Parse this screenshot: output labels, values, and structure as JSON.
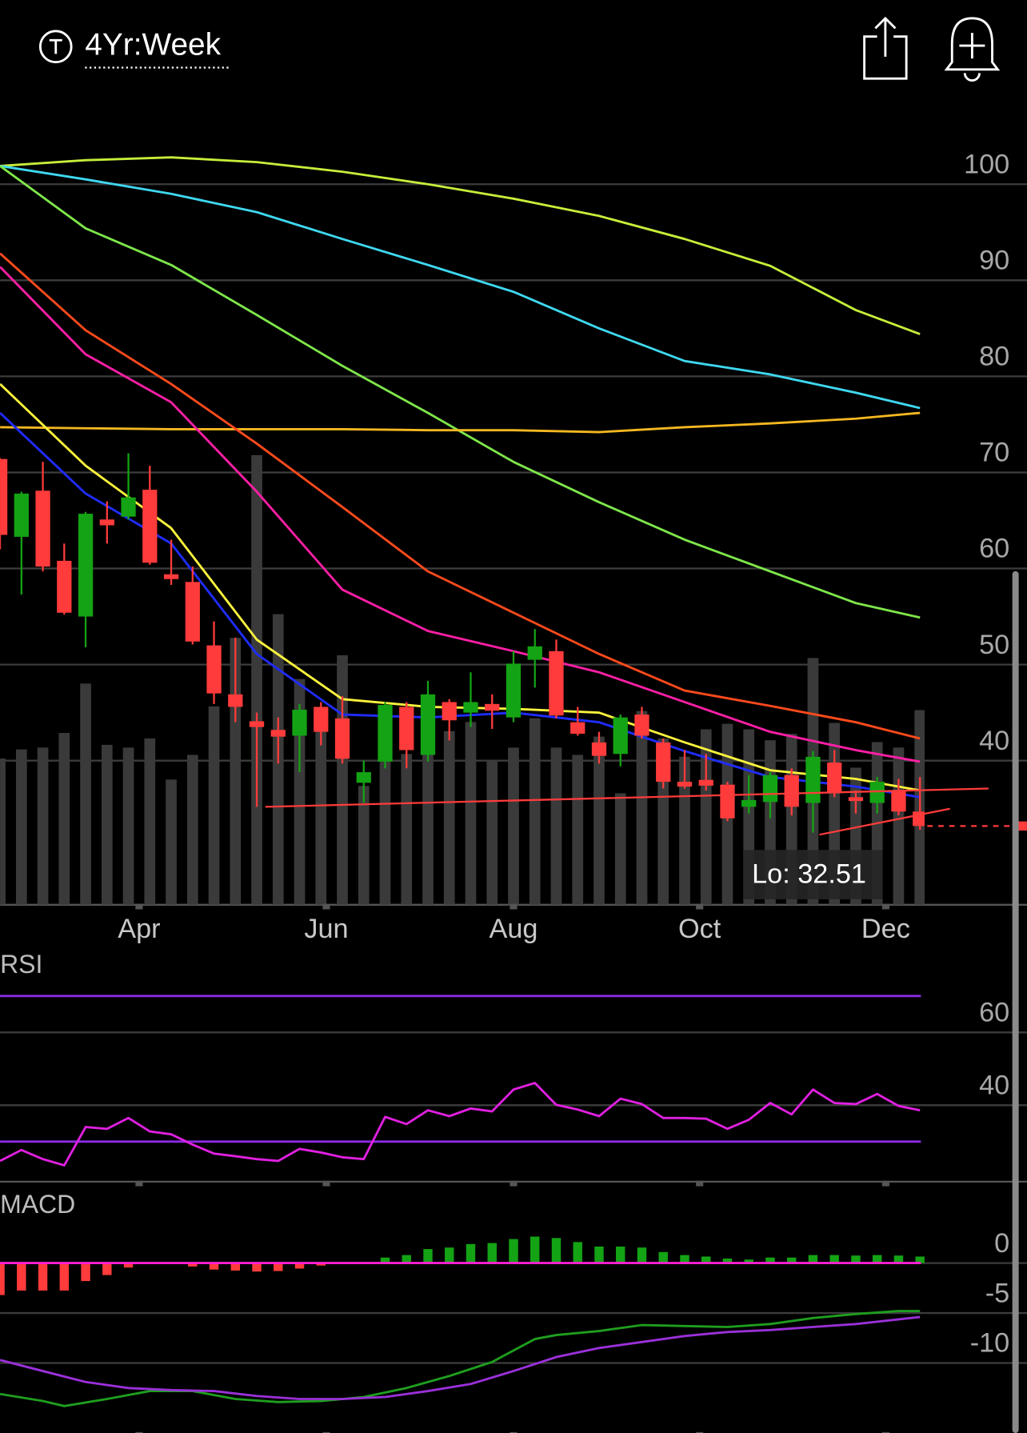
{
  "header": {
    "title": "4Yr:Week"
  },
  "chart_data": [
    {
      "type": "candlestick",
      "xlim": [
        0,
        48
      ],
      "xticks": [
        {
          "value": 6.5,
          "label": "Apr"
        },
        {
          "value": 15.25,
          "label": "Jun"
        },
        {
          "value": 24,
          "label": "Aug"
        },
        {
          "value": 32.7,
          "label": "Oct"
        },
        {
          "value": 41.4,
          "label": "Dec"
        }
      ],
      "ylim": [
        25,
        107
      ],
      "yticks": [
        40,
        50,
        60,
        70,
        80,
        90,
        100
      ],
      "grid": true,
      "up_color": "#14a314",
      "down_color": "#ff3b3b",
      "volume_color": "#3a3a3a",
      "open": [
        71.4,
        63.3,
        68.1,
        60.8,
        55,
        65.1,
        65.4,
        68.2,
        59.4,
        58.6,
        52,
        46.9,
        44.1,
        43.2,
        42.6,
        45.6,
        44.4,
        37.7,
        39.9,
        45.6,
        40.6,
        46.1,
        45,
        45.9,
        44.5,
        50.5,
        51.4,
        44,
        41.9,
        40.7,
        44.8,
        41.9,
        37.8,
        38,
        37.5,
        35.2,
        35.7,
        38.5,
        35.6,
        39.8,
        36.2,
        35.6,
        36.9,
        34.7
      ],
      "high": [
        71.5,
        68,
        71.1,
        62.6,
        65.9,
        67,
        72,
        70.7,
        63,
        60.2,
        54.5,
        52.8,
        45,
        44.5,
        45.9,
        46.1,
        46.7,
        40,
        46.1,
        46.1,
        48.3,
        46.4,
        49.2,
        46.9,
        51.4,
        53.7,
        52.6,
        45.6,
        43,
        44.8,
        45.6,
        42.3,
        41.1,
        40.7,
        37.8,
        38.5,
        38.8,
        39.2,
        41,
        41.1,
        36.9,
        38.3,
        38.1,
        38.3
      ],
      "low": [
        62,
        57.3,
        59.7,
        55.2,
        51.8,
        62.6,
        65.1,
        60.4,
        58.3,
        52.1,
        45.9,
        44,
        35.2,
        39.7,
        38.8,
        41.6,
        39.7,
        35.6,
        39.2,
        39.2,
        39.9,
        42.1,
        43.5,
        43.3,
        44,
        47.6,
        44.4,
        42.6,
        39.7,
        39.4,
        42.3,
        37.1,
        37.1,
        36.9,
        33.7,
        34.5,
        34,
        34.3,
        32.51,
        36.2,
        34.5,
        34.5,
        34.3,
        32.8
      ],
      "close": [
        63.5,
        67.8,
        60.2,
        55.4,
        65.7,
        64.5,
        67.4,
        60.6,
        58.9,
        52.4,
        47,
        45.6,
        43.5,
        42.5,
        45.3,
        43,
        40.2,
        38.8,
        45.8,
        41.1,
        46.9,
        44.2,
        46.1,
        45.2,
        50.1,
        51.9,
        44.7,
        42.8,
        40.5,
        44.5,
        42.6,
        37.8,
        37.3,
        37.4,
        34,
        35.9,
        38.5,
        35.2,
        40.4,
        36.6,
        35.8,
        37.8,
        34.7,
        33.2
      ],
      "volume_lim": [
        0,
        862
      ],
      "volume": [
        160,
        170,
        172,
        188,
        242,
        175,
        172,
        182,
        137,
        164,
        217,
        292,
        492,
        318,
        247,
        210,
        273,
        130,
        200,
        165,
        218,
        190,
        200,
        158,
        172,
        204,
        172,
        164,
        184,
        122,
        212,
        182,
        162,
        192,
        198,
        192,
        180,
        187,
        270,
        199,
        150,
        178,
        172,
        213
      ],
      "series": [
        {
          "color": "#c6ee3a",
          "x": [
            0,
            4,
            8,
            12,
            16,
            20,
            24,
            28,
            32,
            36,
            40,
            43
          ],
          "values": [
            101.9,
            102.5,
            102.8,
            102.3,
            101.3,
            100,
            98.5,
            96.7,
            94.3,
            91.5,
            86.9,
            84.4
          ]
        },
        {
          "color": "#3fd8f0",
          "x": [
            0,
            4,
            8,
            12,
            16,
            20,
            24,
            28,
            32,
            36,
            40,
            43
          ],
          "values": [
            101.9,
            100.5,
            99,
            97.1,
            94.3,
            91.6,
            88.8,
            85,
            81.6,
            80.2,
            78.3,
            76.7
          ]
        },
        {
          "color": "#7ee64a",
          "x": [
            0,
            4,
            8,
            12,
            16,
            20,
            24,
            28,
            32,
            36,
            40,
            43
          ],
          "values": [
            101.9,
            95.4,
            91.6,
            86.4,
            81.1,
            76.2,
            71.1,
            66.9,
            63,
            59.7,
            56.4,
            54.9
          ]
        },
        {
          "color": "#f5b820",
          "x": [
            0,
            4,
            8,
            12,
            16,
            20,
            24,
            28,
            32,
            36,
            40,
            43
          ],
          "values": [
            74.7,
            74.6,
            74.5,
            74.5,
            74.5,
            74.4,
            74.4,
            74.2,
            74.7,
            75.1,
            75.6,
            76.2
          ]
        },
        {
          "color": "#ff4a1c",
          "x": [
            0,
            4,
            8,
            12,
            16,
            20,
            24,
            28,
            32,
            36,
            40,
            43
          ],
          "values": [
            92.8,
            84.8,
            79.2,
            73,
            66.4,
            59.7,
            55.4,
            51.1,
            47.3,
            45.7,
            44,
            42.3
          ]
        },
        {
          "color": "#ff1fa6",
          "x": [
            0,
            4,
            8,
            12,
            16,
            20,
            24,
            28,
            32,
            36,
            40,
            43
          ],
          "values": [
            91.4,
            82.3,
            77.3,
            68,
            57.8,
            53.5,
            51.4,
            49.2,
            46.1,
            43,
            41.1,
            39.9
          ]
        },
        {
          "color": "#fcf43c",
          "x": [
            0,
            4,
            8,
            12,
            16,
            20,
            24,
            28,
            32,
            36,
            40,
            43
          ],
          "values": [
            79.2,
            70.7,
            64.2,
            52.6,
            46.4,
            45.6,
            45.4,
            45,
            41.9,
            39,
            38.1,
            36.9
          ]
        },
        {
          "color": "#1f2cff",
          "x": [
            0,
            4,
            8,
            12,
            16,
            20,
            24,
            28,
            32,
            36,
            40,
            43
          ],
          "values": [
            76.2,
            67.8,
            62.6,
            51.1,
            44.8,
            44.5,
            45,
            44,
            41,
            38.3,
            37.3,
            36.2
          ]
        }
      ],
      "trendlines": [
        {
          "color": "#ff3b3b",
          "x": [
            12.4,
            46.2
          ],
          "values": [
            35.2,
            37.1
          ]
        },
        {
          "color": "#ff3b3b",
          "x": [
            38.3,
            44.4
          ],
          "values": [
            32.3,
            35
          ]
        }
      ],
      "low_label": "Lo: 32.51"
    },
    {
      "type": "line",
      "title": "RSI",
      "xlim": [
        0,
        48
      ],
      "ylim": [
        19,
        82.5
      ],
      "yticks": [
        40,
        60
      ],
      "grid": true,
      "reference_lines": [
        30,
        70
      ],
      "reference_color": "#8a2be2",
      "color": "#e020e0",
      "values": [
        24.7,
        27.7,
        25.2,
        23.5,
        34,
        33.5,
        36.5,
        32.8,
        32,
        29.2,
        26.7,
        26,
        25.2,
        24.7,
        28,
        27,
        25.7,
        25.2,
        36.8,
        34.8,
        38.6,
        37,
        39.1,
        38.3,
        44.3,
        46.1,
        40.1,
        38.8,
        37,
        41.8,
        40.3,
        36.5,
        36.5,
        36.3,
        33.5,
        36,
        40.6,
        37.5,
        44.3,
        40.6,
        40.3,
        43.1,
        39.8,
        38.6
      ]
    },
    {
      "type": "macd",
      "title": "MACD",
      "xlim": [
        0,
        48
      ],
      "ylim": [
        -17,
        7.5
      ],
      "yticks": [
        0,
        -5,
        -10
      ],
      "grid": true,
      "zero_color": "#ff1fd2",
      "up_color": "#14a314",
      "down_color": "#ff3b3b",
      "histogram": [
        -3.2,
        -2.75,
        -2.75,
        -2.75,
        -1.8,
        -1.2,
        -0.45,
        0,
        0,
        -0.35,
        -0.65,
        -0.75,
        -0.85,
        -0.8,
        -0.55,
        -0.25,
        0,
        0,
        0.55,
        0.8,
        1.4,
        1.55,
        1.9,
        2,
        2.4,
        2.65,
        2.5,
        2.1,
        1.65,
        1.65,
        1.55,
        1.1,
        0.8,
        0.65,
        0.45,
        0.35,
        0.55,
        0.55,
        0.8,
        0.8,
        0.75,
        0.8,
        0.75,
        0.65
      ],
      "series": [
        {
          "color": "#1f9e1f",
          "x": [
            0,
            2,
            3,
            5,
            7,
            9,
            11,
            13,
            15,
            17,
            19,
            21,
            23,
            25,
            26,
            28,
            30,
            32,
            34,
            36,
            38,
            40,
            42,
            43
          ],
          "values": [
            -13.1,
            -13.8,
            -14.3,
            -13.6,
            -12.8,
            -12.8,
            -13.6,
            -13.9,
            -13.8,
            -13.4,
            -12.5,
            -11.3,
            -9.9,
            -7.6,
            -7.2,
            -6.8,
            -6.2,
            -6.3,
            -6.4,
            -6.1,
            -5.5,
            -5.1,
            -4.8,
            -4.8
          ]
        },
        {
          "color": "#9b30d9",
          "x": [
            0,
            2,
            4,
            6,
            8,
            10,
            12,
            14,
            16,
            18,
            20,
            22,
            24,
            26,
            28,
            30,
            32,
            34,
            36,
            38,
            40,
            43
          ],
          "values": [
            -9.7,
            -10.8,
            -11.9,
            -12.5,
            -12.7,
            -12.8,
            -13.3,
            -13.6,
            -13.6,
            -13.4,
            -12.8,
            -12.1,
            -10.8,
            -9.4,
            -8.5,
            -7.9,
            -7.3,
            -6.9,
            -6.7,
            -6.4,
            -6.1,
            -5.4
          ]
        }
      ]
    }
  ]
}
